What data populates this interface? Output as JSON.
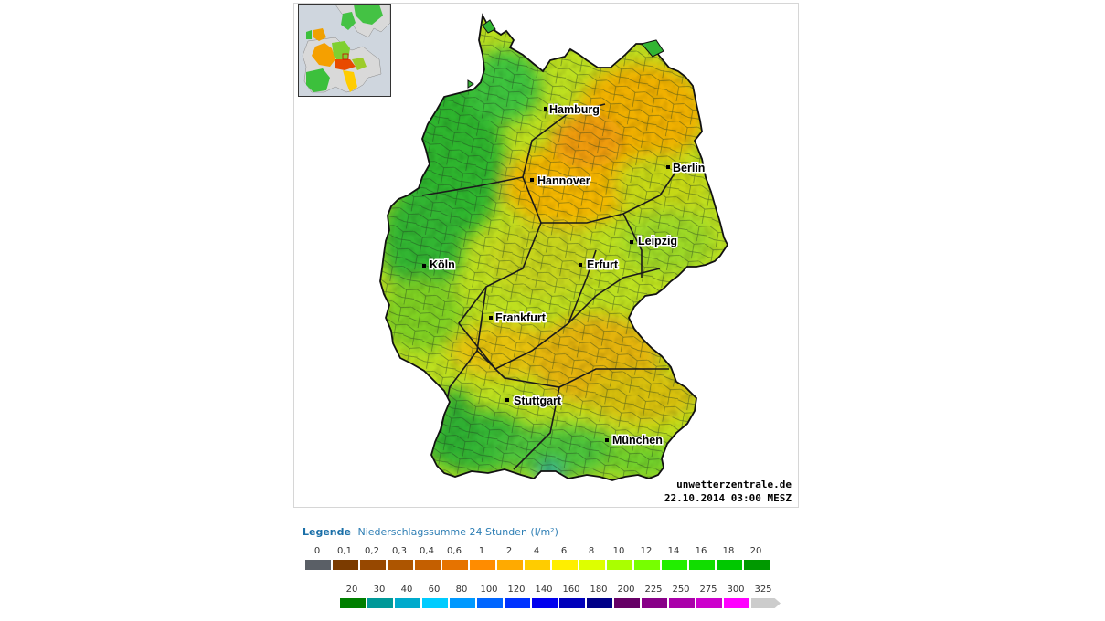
{
  "map": {
    "cities": [
      "Hamburg",
      "Berlin",
      "Hannover",
      "Leipzig",
      "Köln",
      "Erfurt",
      "Frankfurt",
      "Stuttgart",
      "München"
    ],
    "watermark_site": "unwetterzentrale.de",
    "timestamp": "22.10.2014 03:00 MESZ"
  },
  "legend": {
    "title": "Legende",
    "subtitle": "Niederschlagssumme 24 Stunden  (l/m²)",
    "row1": {
      "labels": [
        "0",
        "0,1",
        "0,2",
        "0,3",
        "0,4",
        "0,6",
        "1",
        "2",
        "4",
        "6",
        "8",
        "10",
        "12",
        "14",
        "16",
        "18",
        "20"
      ],
      "colors": [
        "#5a5f66",
        "#7b3b00",
        "#974800",
        "#ad5500",
        "#c45f00",
        "#e67300",
        "#ff8c00",
        "#ffaa00",
        "#ffcc00",
        "#ffee00",
        "#ddff00",
        "#aaff00",
        "#77ff00",
        "#22ee00",
        "#11dd00",
        "#00c800",
        "#009900"
      ]
    },
    "row2": {
      "labels": [
        "20",
        "30",
        "40",
        "60",
        "80",
        "100",
        "120",
        "140",
        "160",
        "180",
        "200",
        "225",
        "250",
        "275",
        "300",
        "325"
      ],
      "colors": [
        "#007f00",
        "#009999",
        "#00aacc",
        "#00ccff",
        "#0099ff",
        "#0066ff",
        "#0033ff",
        "#0000ee",
        "#0000bb",
        "#000088",
        "#660066",
        "#880088",
        "#aa00aa",
        "#cc00cc",
        "#ff00ff",
        "#cccccc"
      ]
    }
  }
}
